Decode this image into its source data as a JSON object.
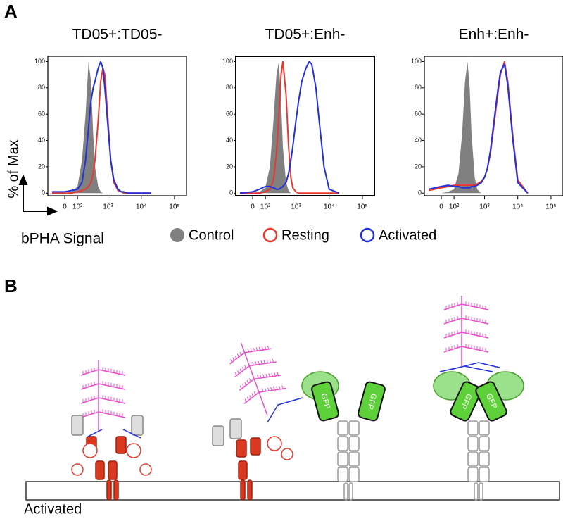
{
  "panel_labels": [
    "A",
    "B"
  ],
  "axis_labels": {
    "y": "% of Max",
    "x": "bPHA Signal"
  },
  "chart_data": [
    {
      "type": "line",
      "title": "TD05+:TD05-",
      "xscale": "asinh",
      "xlim": [
        -146,
        230000
      ],
      "ylim": [
        -2,
        104
      ],
      "xticks": [
        {
          "value": 0,
          "label": "0"
        },
        {
          "value": 100,
          "label": "10²"
        },
        {
          "value": 1000,
          "label": "10³"
        },
        {
          "value": 10000,
          "label": "10⁴"
        },
        {
          "value": 100000,
          "label": "10⁵"
        }
      ],
      "yticks": [
        0,
        20,
        40,
        60,
        80,
        100
      ],
      "x": [
        -100,
        0,
        50,
        100,
        150,
        200,
        250,
        300,
        350,
        400,
        500,
        600,
        700,
        800,
        1000,
        1200,
        1500,
        2000,
        2500,
        3000,
        4000,
        5000,
        7000,
        10000,
        20000
      ],
      "series": [
        {
          "name": "Control",
          "color": "#808080",
          "filled": true,
          "values": [
            0,
            0,
            1,
            5,
            25,
            60,
            100,
            85,
            45,
            20,
            5,
            1,
            0,
            0,
            0,
            0,
            0,
            0,
            0,
            0,
            0,
            0,
            0,
            0,
            0
          ]
        },
        {
          "name": "Resting",
          "color": "#e8392e",
          "filled": false,
          "values": [
            0,
            0,
            0,
            1,
            2,
            3,
            5,
            8,
            15,
            25,
            55,
            85,
            95,
            90,
            55,
            25,
            8,
            2,
            1,
            0,
            0,
            0,
            0,
            0,
            0
          ]
        },
        {
          "name": "Activated",
          "color": "#2231d8",
          "filled": false,
          "values": [
            1,
            1,
            2,
            3,
            8,
            25,
            50,
            70,
            80,
            85,
            95,
            100,
            95,
            80,
            50,
            25,
            10,
            3,
            1,
            1,
            0,
            0,
            0,
            0,
            0
          ]
        }
      ]
    },
    {
      "type": "line",
      "title": "TD05+:Enh-",
      "xscale": "asinh",
      "xlim": [
        -146,
        230000
      ],
      "ylim": [
        -2,
        104
      ],
      "xticks": [
        {
          "value": 0,
          "label": "0"
        },
        {
          "value": 100,
          "label": "10²"
        },
        {
          "value": 1000,
          "label": "10³"
        },
        {
          "value": 10000,
          "label": "10⁴"
        },
        {
          "value": 100000,
          "label": "10⁵"
        }
      ],
      "yticks": [
        0,
        20,
        40,
        60,
        80,
        100
      ],
      "x": [
        -100,
        0,
        50,
        100,
        150,
        200,
        250,
        300,
        350,
        400,
        500,
        600,
        700,
        800,
        1000,
        1200,
        1500,
        2000,
        2500,
        3000,
        4000,
        5000,
        7000,
        10000,
        20000
      ],
      "series": [
        {
          "name": "Control",
          "color": "#808080",
          "filled": true,
          "values": [
            0,
            0,
            1,
            4,
            20,
            55,
            90,
            100,
            70,
            35,
            8,
            2,
            0,
            0,
            0,
            0,
            0,
            0,
            0,
            0,
            0,
            0,
            0,
            0,
            0
          ]
        },
        {
          "name": "Resting",
          "color": "#e8392e",
          "filled": false,
          "values": [
            0,
            0,
            0,
            1,
            3,
            10,
            30,
            60,
            90,
            100,
            75,
            35,
            12,
            4,
            1,
            0,
            0,
            0,
            0,
            0,
            0,
            0,
            0,
            0,
            0
          ]
        },
        {
          "name": "Activated",
          "color": "#2231d8",
          "filled": false,
          "values": [
            0,
            1,
            3,
            5,
            5,
            4,
            3,
            3,
            4,
            5,
            8,
            15,
            25,
            35,
            55,
            70,
            85,
            95,
            100,
            98,
            80,
            55,
            20,
            3,
            0
          ]
        }
      ]
    },
    {
      "type": "line",
      "title": "Enh+:Enh-",
      "xscale": "asinh",
      "xlim": [
        -146,
        230000
      ],
      "ylim": [
        -2,
        104
      ],
      "xticks": [
        {
          "value": 0,
          "label": "0"
        },
        {
          "value": 100,
          "label": "10²"
        },
        {
          "value": 1000,
          "label": "10³"
        },
        {
          "value": 10000,
          "label": "10⁴"
        },
        {
          "value": 100000,
          "label": "10⁵"
        }
      ],
      "yticks": [
        0,
        20,
        40,
        60,
        80,
        100
      ],
      "x": [
        -100,
        0,
        50,
        100,
        150,
        200,
        250,
        300,
        350,
        400,
        500,
        600,
        700,
        800,
        1000,
        1200,
        1500,
        2000,
        2500,
        3000,
        4000,
        5000,
        7000,
        10000,
        20000
      ],
      "series": [
        {
          "name": "Control",
          "color": "#808080",
          "filled": true,
          "values": [
            0,
            0,
            1,
            3,
            15,
            45,
            85,
            100,
            80,
            45,
            12,
            3,
            1,
            0,
            0,
            0,
            0,
            0,
            0,
            0,
            0,
            0,
            0,
            0,
            0
          ]
        },
        {
          "name": "Resting",
          "color": "#e8392e",
          "filled": false,
          "values": [
            2,
            4,
            5,
            6,
            6,
            6,
            6,
            6,
            6,
            6,
            6,
            7,
            8,
            9,
            12,
            18,
            30,
            55,
            75,
            90,
            100,
            85,
            45,
            10,
            0
          ]
        },
        {
          "name": "Activated",
          "color": "#2231d8",
          "filled": false,
          "values": [
            3,
            5,
            6,
            5,
            5,
            4,
            4,
            4,
            4,
            5,
            5,
            6,
            7,
            8,
            12,
            18,
            32,
            58,
            78,
            92,
            98,
            82,
            42,
            8,
            0
          ]
        }
      ]
    }
  ],
  "diagram": {
    "membrane_label": "Activated",
    "gfp_labels": [
      "GFP",
      "GFP",
      "GFP",
      "GFP"
    ]
  }
}
